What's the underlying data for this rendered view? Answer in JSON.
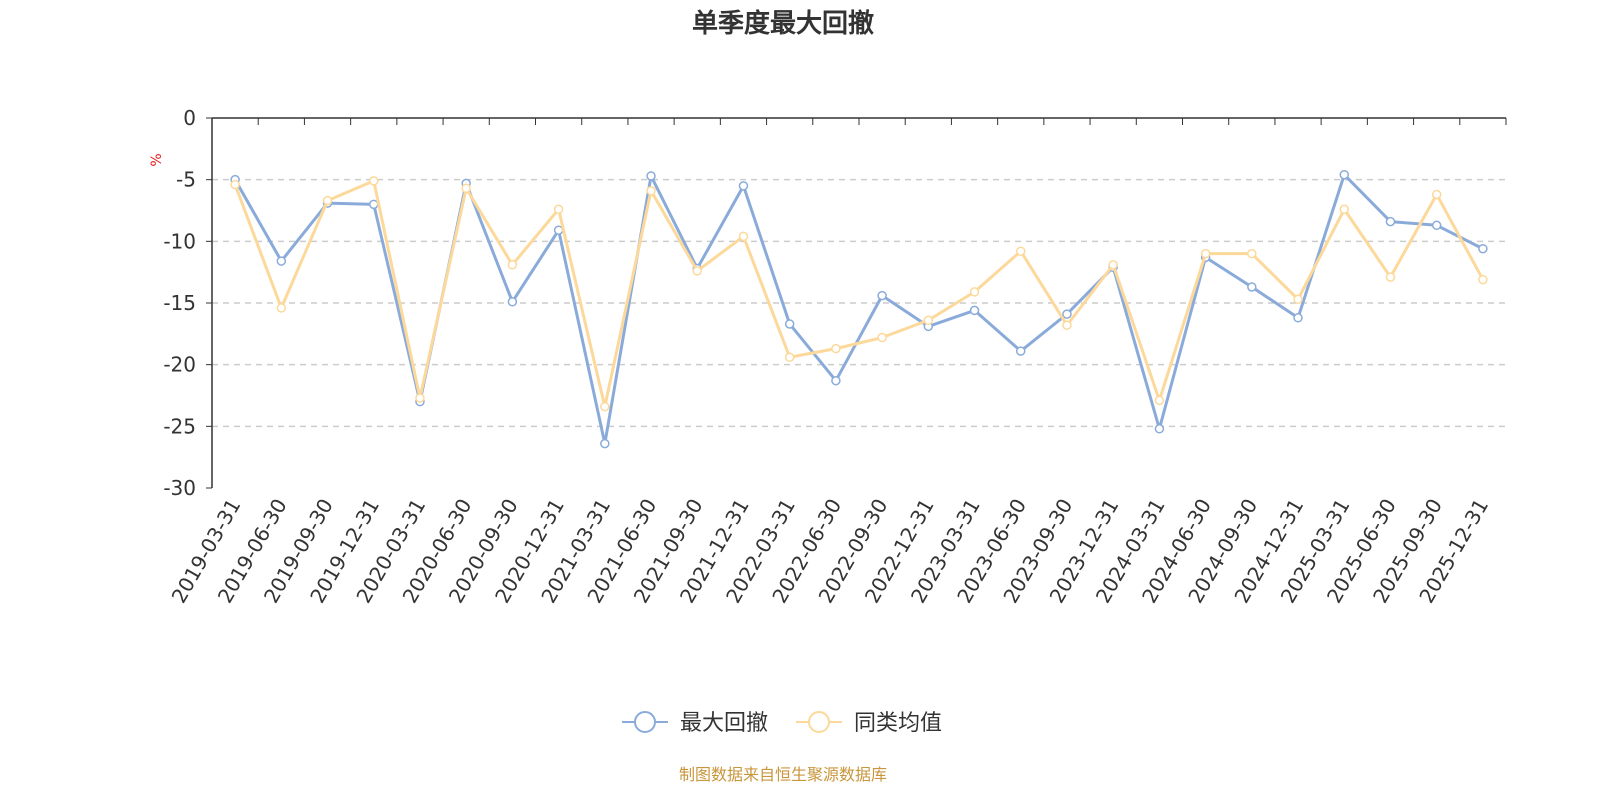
{
  "chart_data": {
    "type": "line",
    "title": "单季度最大回撤",
    "ylabel": "%",
    "ylim": [
      -30,
      0
    ],
    "yticks": [
      0,
      -5,
      -10,
      -15,
      -20,
      -25,
      -30
    ],
    "grid": true,
    "legend_position": "bottom-center",
    "categories": [
      "2019-03-31",
      "2019-06-30",
      "2019-09-30",
      "2019-12-31",
      "2020-03-31",
      "2020-06-30",
      "2020-09-30",
      "2020-12-31",
      "2021-03-31",
      "2021-06-30",
      "2021-09-30",
      "2021-12-31",
      "2022-03-31",
      "2022-06-30",
      "2022-09-30",
      "2022-12-31",
      "2023-03-31",
      "2023-06-30",
      "2023-09-30",
      "2023-12-31",
      "2024-03-31",
      "2024-06-30",
      "2024-09-30",
      "2024-12-31",
      "2025-03-31",
      "2025-06-30",
      "2025-09-30",
      "2025-12-31"
    ],
    "series": [
      {
        "name": "最大回撤",
        "color": "#8aabda",
        "values": [
          -5.0,
          -11.6,
          -6.9,
          -7.0,
          -23.0,
          -5.3,
          -14.9,
          -9.1,
          -26.4,
          -4.7,
          -12.2,
          -5.5,
          -16.7,
          -21.3,
          -14.4,
          -16.9,
          -15.6,
          -18.9,
          -15.9,
          -12.1,
          -25.2,
          -11.3,
          -13.7,
          -16.2,
          -4.6,
          -8.4,
          -8.7,
          -10.6
        ]
      },
      {
        "name": "同类均值",
        "color": "#fcd99b",
        "values": [
          -5.4,
          -15.4,
          -6.7,
          -5.1,
          -22.7,
          -5.7,
          -11.9,
          -7.4,
          -23.4,
          -5.9,
          -12.4,
          -9.6,
          -19.4,
          -18.7,
          -17.8,
          -16.4,
          -14.1,
          -10.8,
          -16.8,
          -11.9,
          -22.9,
          -11.0,
          -11.0,
          -14.7,
          -7.4,
          -12.9,
          -6.2,
          -13.1
        ]
      }
    ]
  },
  "source_note": "制图数据来自恒生聚源数据库"
}
